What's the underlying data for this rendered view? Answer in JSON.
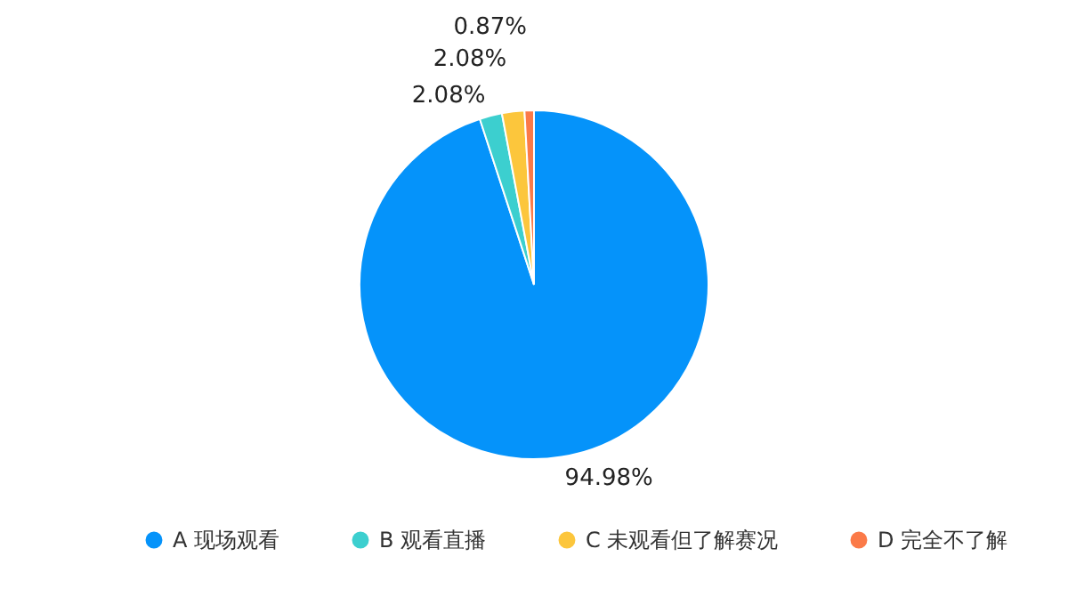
{
  "chart_data": {
    "type": "pie",
    "categories": [
      "A 现场观看",
      "B 观看直播",
      "C 未观看但了解赛况",
      "D 完全不了解"
    ],
    "values": [
      94.98,
      2.08,
      2.08,
      0.87
    ],
    "colors": [
      "#0593fa",
      "#3ccfcf",
      "#fcc63c",
      "#fb7a48"
    ],
    "value_labels": [
      "94.98%",
      "2.08%",
      "2.08%",
      "0.87%"
    ],
    "legend": "bottom"
  }
}
